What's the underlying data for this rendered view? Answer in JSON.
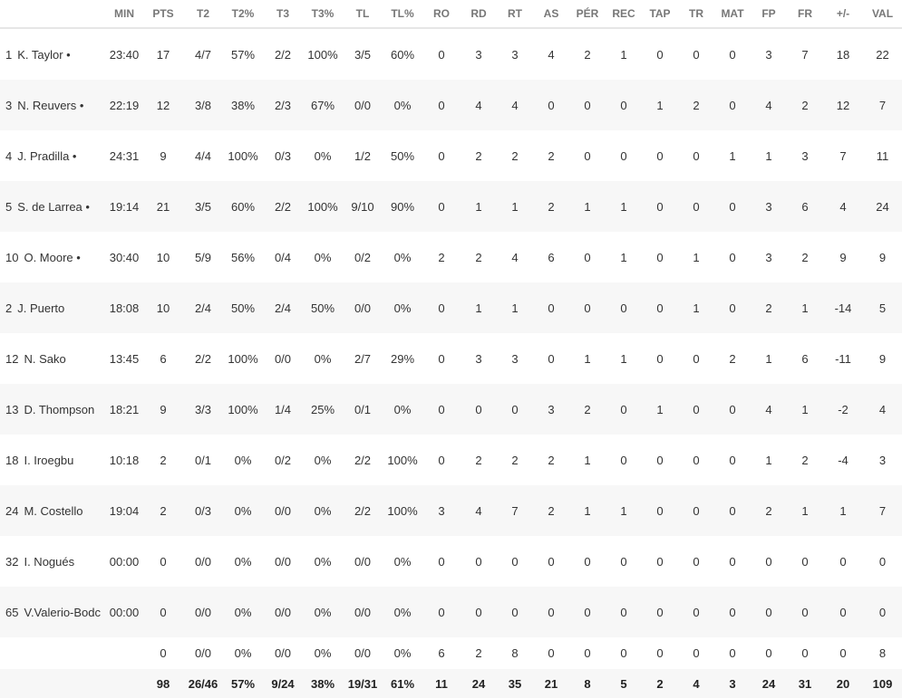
{
  "columns": [
    "",
    "MIN",
    "PTS",
    "T2",
    "T2%",
    "T3",
    "T3%",
    "TL",
    "TL%",
    "RO",
    "RD",
    "RT",
    "AS",
    "PÉR",
    "REC",
    "TAP",
    "TR",
    "MAT",
    "FP",
    "FR",
    "+/-",
    "VAL"
  ],
  "players": [
    {
      "number": "1",
      "name": "K. Taylor •",
      "stats": [
        "23:40",
        "17",
        "4/7",
        "57%",
        "2/2",
        "100%",
        "3/5",
        "60%",
        "0",
        "3",
        "3",
        "4",
        "2",
        "1",
        "0",
        "0",
        "0",
        "3",
        "7",
        "18",
        "22"
      ]
    },
    {
      "number": "3",
      "name": "N. Reuvers •",
      "stats": [
        "22:19",
        "12",
        "3/8",
        "38%",
        "2/3",
        "67%",
        "0/0",
        "0%",
        "0",
        "4",
        "4",
        "0",
        "0",
        "0",
        "1",
        "2",
        "0",
        "4",
        "2",
        "12",
        "7"
      ]
    },
    {
      "number": "4",
      "name": "J. Pradilla •",
      "stats": [
        "24:31",
        "9",
        "4/4",
        "100%",
        "0/3",
        "0%",
        "1/2",
        "50%",
        "0",
        "2",
        "2",
        "2",
        "0",
        "0",
        "0",
        "0",
        "1",
        "1",
        "3",
        "7",
        "11"
      ]
    },
    {
      "number": "5",
      "name": "S. de Larrea •",
      "stats": [
        "19:14",
        "21",
        "3/5",
        "60%",
        "2/2",
        "100%",
        "9/10",
        "90%",
        "0",
        "1",
        "1",
        "2",
        "1",
        "1",
        "0",
        "0",
        "0",
        "3",
        "6",
        "4",
        "24"
      ]
    },
    {
      "number": "10",
      "name": "O. Moore •",
      "stats": [
        "30:40",
        "10",
        "5/9",
        "56%",
        "0/4",
        "0%",
        "0/2",
        "0%",
        "2",
        "2",
        "4",
        "6",
        "0",
        "1",
        "0",
        "1",
        "0",
        "3",
        "2",
        "9",
        "9"
      ]
    },
    {
      "number": "2",
      "name": "J. Puerto",
      "stats": [
        "18:08",
        "10",
        "2/4",
        "50%",
        "2/4",
        "50%",
        "0/0",
        "0%",
        "0",
        "1",
        "1",
        "0",
        "0",
        "0",
        "0",
        "1",
        "0",
        "2",
        "1",
        "-14",
        "5"
      ]
    },
    {
      "number": "12",
      "name": "N. Sako",
      "stats": [
        "13:45",
        "6",
        "2/2",
        "100%",
        "0/0",
        "0%",
        "2/7",
        "29%",
        "0",
        "3",
        "3",
        "0",
        "1",
        "1",
        "0",
        "0",
        "2",
        "1",
        "6",
        "-11",
        "9"
      ]
    },
    {
      "number": "13",
      "name": "D. Thompson",
      "stats": [
        "18:21",
        "9",
        "3/3",
        "100%",
        "1/4",
        "25%",
        "0/1",
        "0%",
        "0",
        "0",
        "0",
        "3",
        "2",
        "0",
        "1",
        "0",
        "0",
        "4",
        "1",
        "-2",
        "4"
      ]
    },
    {
      "number": "18",
      "name": "I. Iroegbu",
      "stats": [
        "10:18",
        "2",
        "0/1",
        "0%",
        "0/2",
        "0%",
        "2/2",
        "100%",
        "0",
        "2",
        "2",
        "2",
        "1",
        "0",
        "0",
        "0",
        "0",
        "1",
        "2",
        "-4",
        "3"
      ]
    },
    {
      "number": "24",
      "name": "M. Costello",
      "stats": [
        "19:04",
        "2",
        "0/3",
        "0%",
        "0/0",
        "0%",
        "2/2",
        "100%",
        "3",
        "4",
        "7",
        "2",
        "1",
        "1",
        "0",
        "0",
        "0",
        "2",
        "1",
        "1",
        "7"
      ]
    },
    {
      "number": "32",
      "name": "I. Nogués",
      "stats": [
        "00:00",
        "0",
        "0/0",
        "0%",
        "0/0",
        "0%",
        "0/0",
        "0%",
        "0",
        "0",
        "0",
        "0",
        "0",
        "0",
        "0",
        "0",
        "0",
        "0",
        "0",
        "0",
        "0"
      ]
    },
    {
      "number": "65",
      "name": "V.Valerio-Bodc",
      "stats": [
        "00:00",
        "0",
        "0/0",
        "0%",
        "0/0",
        "0%",
        "0/0",
        "0%",
        "0",
        "0",
        "0",
        "0",
        "0",
        "0",
        "0",
        "0",
        "0",
        "0",
        "0",
        "0",
        "0"
      ]
    }
  ],
  "team_row": [
    "",
    "0",
    "0/0",
    "0%",
    "0/0",
    "0%",
    "0/0",
    "0%",
    "6",
    "2",
    "8",
    "0",
    "0",
    "0",
    "0",
    "0",
    "0",
    "0",
    "0",
    "0",
    "8"
  ],
  "totals": [
    "",
    "98",
    "26/46",
    "57%",
    "9/24",
    "38%",
    "19/31",
    "61%",
    "11",
    "24",
    "35",
    "21",
    "8",
    "5",
    "2",
    "4",
    "3",
    "24",
    "31",
    "20",
    "109"
  ]
}
